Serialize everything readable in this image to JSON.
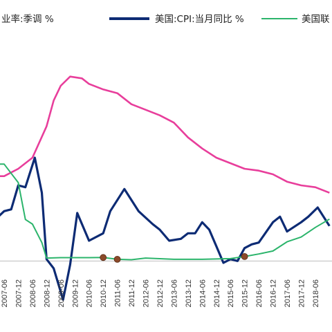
{
  "legend": {
    "unemployment": "业率:季调 %",
    "cpi": "美国:CPI:当月同比 %",
    "fed": "美国联"
  },
  "colors": {
    "unemployment": "#e83e9b",
    "cpi": "#0d2b74",
    "fed": "#2bb46b",
    "marker": "#8b4a2a",
    "zero_line": "#bdbdbd"
  },
  "chart_data": {
    "type": "line",
    "title": "",
    "xlabel": "",
    "ylabel": "",
    "x_tick_labels": [
      "2007-06",
      "2007-12",
      "2008-06",
      "2008-12",
      "2009-06",
      "2009-12",
      "2010-06",
      "2010-12",
      "2011-06",
      "2011-12",
      "2012-06",
      "2012-12",
      "2013-06",
      "2013-12",
      "2014-06",
      "2014-12",
      "2015-06",
      "2015-12",
      "2016-06",
      "2016-12",
      "2017-06",
      "2017-12",
      "2018-06"
    ],
    "ylim": [
      -2.5,
      11.0
    ],
    "grid": false,
    "legend_position": "top",
    "series": [
      {
        "key": "unemployment",
        "x": [
          "2007-01",
          "2007-06",
          "2007-12",
          "2008-06",
          "2008-12",
          "2009-03",
          "2009-06",
          "2009-10",
          "2010-03",
          "2010-06",
          "2010-12",
          "2011-06",
          "2011-12",
          "2012-06",
          "2012-12",
          "2013-06",
          "2013-12",
          "2014-06",
          "2014-12",
          "2015-06",
          "2015-12",
          "2016-06",
          "2016-12",
          "2017-06",
          "2017-12",
          "2018-06",
          "2018-12"
        ],
        "values": [
          4.6,
          4.6,
          5.0,
          5.6,
          7.3,
          8.7,
          9.5,
          10.0,
          9.9,
          9.6,
          9.3,
          9.1,
          8.5,
          8.2,
          7.9,
          7.5,
          6.7,
          6.1,
          5.6,
          5.3,
          5.0,
          4.9,
          4.7,
          4.3,
          4.1,
          4.0,
          3.7
        ]
      },
      {
        "key": "cpi",
        "x": [
          "2007-01",
          "2007-06",
          "2007-09",
          "2007-12",
          "2008-03",
          "2008-07",
          "2008-10",
          "2008-12",
          "2009-03",
          "2009-07",
          "2009-10",
          "2010-01",
          "2010-06",
          "2010-12",
          "2011-03",
          "2011-09",
          "2012-03",
          "2012-09",
          "2012-12",
          "2013-04",
          "2013-09",
          "2013-12",
          "2014-03",
          "2014-06",
          "2014-09",
          "2014-12",
          "2015-03",
          "2015-06",
          "2015-09",
          "2015-12",
          "2016-03",
          "2016-06",
          "2016-12",
          "2017-03",
          "2017-06",
          "2017-12",
          "2018-03",
          "2018-07",
          "2018-12"
        ],
        "values": [
          2.1,
          2.7,
          2.8,
          4.1,
          4.0,
          5.6,
          3.7,
          0.1,
          -0.4,
          -2.1,
          -0.2,
          2.6,
          1.1,
          1.5,
          2.7,
          3.9,
          2.7,
          2.0,
          1.7,
          1.1,
          1.2,
          1.5,
          1.5,
          2.1,
          1.7,
          0.8,
          -0.1,
          0.1,
          0.0,
          0.7,
          0.9,
          1.0,
          2.1,
          2.4,
          1.6,
          2.1,
          2.4,
          2.9,
          1.9
        ]
      },
      {
        "key": "fed",
        "x": [
          "2007-01",
          "2007-06",
          "2007-09",
          "2007-12",
          "2008-03",
          "2008-06",
          "2008-10",
          "2008-12",
          "2009-06",
          "2010-06",
          "2010-12",
          "2011-06",
          "2011-12",
          "2012-06",
          "2013-06",
          "2014-06",
          "2015-06",
          "2015-12",
          "2016-06",
          "2016-12",
          "2017-06",
          "2017-12",
          "2018-06",
          "2018-12"
        ],
        "values": [
          5.25,
          5.25,
          4.75,
          4.25,
          2.25,
          2.0,
          1.0,
          0.16,
          0.18,
          0.18,
          0.19,
          0.09,
          0.07,
          0.16,
          0.09,
          0.09,
          0.13,
          0.24,
          0.38,
          0.54,
          1.04,
          1.3,
          1.82,
          2.27
        ]
      }
    ],
    "markers": [
      {
        "series": "fed",
        "x": "2010-12",
        "value": 0.19
      },
      {
        "series": "fed",
        "x": "2011-06",
        "value": 0.09
      },
      {
        "series": "fed",
        "x": "2015-12",
        "value": 0.24
      }
    ]
  }
}
